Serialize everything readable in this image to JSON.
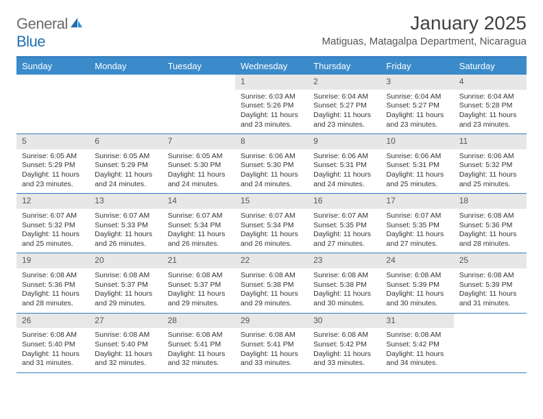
{
  "brand": {
    "name_a": "General",
    "name_b": "Blue"
  },
  "title": "January 2025",
  "location": "Matiguas, Matagalpa Department, Nicaragua",
  "header_bg": "#3b8bca",
  "border_color": "#2f7bbf",
  "daynum_bg": "#e7e7e7",
  "dow": [
    "Sunday",
    "Monday",
    "Tuesday",
    "Wednesday",
    "Thursday",
    "Friday",
    "Saturday"
  ],
  "weeks": [
    [
      {
        "n": "",
        "sr": "",
        "ss": "",
        "dl1": "",
        "dl2": ""
      },
      {
        "n": "",
        "sr": "",
        "ss": "",
        "dl1": "",
        "dl2": ""
      },
      {
        "n": "",
        "sr": "",
        "ss": "",
        "dl1": "",
        "dl2": ""
      },
      {
        "n": "1",
        "sr": "Sunrise: 6:03 AM",
        "ss": "Sunset: 5:26 PM",
        "dl1": "Daylight: 11 hours",
        "dl2": "and 23 minutes."
      },
      {
        "n": "2",
        "sr": "Sunrise: 6:04 AM",
        "ss": "Sunset: 5:27 PM",
        "dl1": "Daylight: 11 hours",
        "dl2": "and 23 minutes."
      },
      {
        "n": "3",
        "sr": "Sunrise: 6:04 AM",
        "ss": "Sunset: 5:27 PM",
        "dl1": "Daylight: 11 hours",
        "dl2": "and 23 minutes."
      },
      {
        "n": "4",
        "sr": "Sunrise: 6:04 AM",
        "ss": "Sunset: 5:28 PM",
        "dl1": "Daylight: 11 hours",
        "dl2": "and 23 minutes."
      }
    ],
    [
      {
        "n": "5",
        "sr": "Sunrise: 6:05 AM",
        "ss": "Sunset: 5:29 PM",
        "dl1": "Daylight: 11 hours",
        "dl2": "and 23 minutes."
      },
      {
        "n": "6",
        "sr": "Sunrise: 6:05 AM",
        "ss": "Sunset: 5:29 PM",
        "dl1": "Daylight: 11 hours",
        "dl2": "and 24 minutes."
      },
      {
        "n": "7",
        "sr": "Sunrise: 6:05 AM",
        "ss": "Sunset: 5:30 PM",
        "dl1": "Daylight: 11 hours",
        "dl2": "and 24 minutes."
      },
      {
        "n": "8",
        "sr": "Sunrise: 6:06 AM",
        "ss": "Sunset: 5:30 PM",
        "dl1": "Daylight: 11 hours",
        "dl2": "and 24 minutes."
      },
      {
        "n": "9",
        "sr": "Sunrise: 6:06 AM",
        "ss": "Sunset: 5:31 PM",
        "dl1": "Daylight: 11 hours",
        "dl2": "and 24 minutes."
      },
      {
        "n": "10",
        "sr": "Sunrise: 6:06 AM",
        "ss": "Sunset: 5:31 PM",
        "dl1": "Daylight: 11 hours",
        "dl2": "and 25 minutes."
      },
      {
        "n": "11",
        "sr": "Sunrise: 6:06 AM",
        "ss": "Sunset: 5:32 PM",
        "dl1": "Daylight: 11 hours",
        "dl2": "and 25 minutes."
      }
    ],
    [
      {
        "n": "12",
        "sr": "Sunrise: 6:07 AM",
        "ss": "Sunset: 5:32 PM",
        "dl1": "Daylight: 11 hours",
        "dl2": "and 25 minutes."
      },
      {
        "n": "13",
        "sr": "Sunrise: 6:07 AM",
        "ss": "Sunset: 5:33 PM",
        "dl1": "Daylight: 11 hours",
        "dl2": "and 26 minutes."
      },
      {
        "n": "14",
        "sr": "Sunrise: 6:07 AM",
        "ss": "Sunset: 5:34 PM",
        "dl1": "Daylight: 11 hours",
        "dl2": "and 26 minutes."
      },
      {
        "n": "15",
        "sr": "Sunrise: 6:07 AM",
        "ss": "Sunset: 5:34 PM",
        "dl1": "Daylight: 11 hours",
        "dl2": "and 26 minutes."
      },
      {
        "n": "16",
        "sr": "Sunrise: 6:07 AM",
        "ss": "Sunset: 5:35 PM",
        "dl1": "Daylight: 11 hours",
        "dl2": "and 27 minutes."
      },
      {
        "n": "17",
        "sr": "Sunrise: 6:07 AM",
        "ss": "Sunset: 5:35 PM",
        "dl1": "Daylight: 11 hours",
        "dl2": "and 27 minutes."
      },
      {
        "n": "18",
        "sr": "Sunrise: 6:08 AM",
        "ss": "Sunset: 5:36 PM",
        "dl1": "Daylight: 11 hours",
        "dl2": "and 28 minutes."
      }
    ],
    [
      {
        "n": "19",
        "sr": "Sunrise: 6:08 AM",
        "ss": "Sunset: 5:36 PM",
        "dl1": "Daylight: 11 hours",
        "dl2": "and 28 minutes."
      },
      {
        "n": "20",
        "sr": "Sunrise: 6:08 AM",
        "ss": "Sunset: 5:37 PM",
        "dl1": "Daylight: 11 hours",
        "dl2": "and 29 minutes."
      },
      {
        "n": "21",
        "sr": "Sunrise: 6:08 AM",
        "ss": "Sunset: 5:37 PM",
        "dl1": "Daylight: 11 hours",
        "dl2": "and 29 minutes."
      },
      {
        "n": "22",
        "sr": "Sunrise: 6:08 AM",
        "ss": "Sunset: 5:38 PM",
        "dl1": "Daylight: 11 hours",
        "dl2": "and 29 minutes."
      },
      {
        "n": "23",
        "sr": "Sunrise: 6:08 AM",
        "ss": "Sunset: 5:38 PM",
        "dl1": "Daylight: 11 hours",
        "dl2": "and 30 minutes."
      },
      {
        "n": "24",
        "sr": "Sunrise: 6:08 AM",
        "ss": "Sunset: 5:39 PM",
        "dl1": "Daylight: 11 hours",
        "dl2": "and 30 minutes."
      },
      {
        "n": "25",
        "sr": "Sunrise: 6:08 AM",
        "ss": "Sunset: 5:39 PM",
        "dl1": "Daylight: 11 hours",
        "dl2": "and 31 minutes."
      }
    ],
    [
      {
        "n": "26",
        "sr": "Sunrise: 6:08 AM",
        "ss": "Sunset: 5:40 PM",
        "dl1": "Daylight: 11 hours",
        "dl2": "and 31 minutes."
      },
      {
        "n": "27",
        "sr": "Sunrise: 6:08 AM",
        "ss": "Sunset: 5:40 PM",
        "dl1": "Daylight: 11 hours",
        "dl2": "and 32 minutes."
      },
      {
        "n": "28",
        "sr": "Sunrise: 6:08 AM",
        "ss": "Sunset: 5:41 PM",
        "dl1": "Daylight: 11 hours",
        "dl2": "and 32 minutes."
      },
      {
        "n": "29",
        "sr": "Sunrise: 6:08 AM",
        "ss": "Sunset: 5:41 PM",
        "dl1": "Daylight: 11 hours",
        "dl2": "and 33 minutes."
      },
      {
        "n": "30",
        "sr": "Sunrise: 6:08 AM",
        "ss": "Sunset: 5:42 PM",
        "dl1": "Daylight: 11 hours",
        "dl2": "and 33 minutes."
      },
      {
        "n": "31",
        "sr": "Sunrise: 6:08 AM",
        "ss": "Sunset: 5:42 PM",
        "dl1": "Daylight: 11 hours",
        "dl2": "and 34 minutes."
      },
      {
        "n": "",
        "sr": "",
        "ss": "",
        "dl1": "",
        "dl2": ""
      }
    ]
  ]
}
